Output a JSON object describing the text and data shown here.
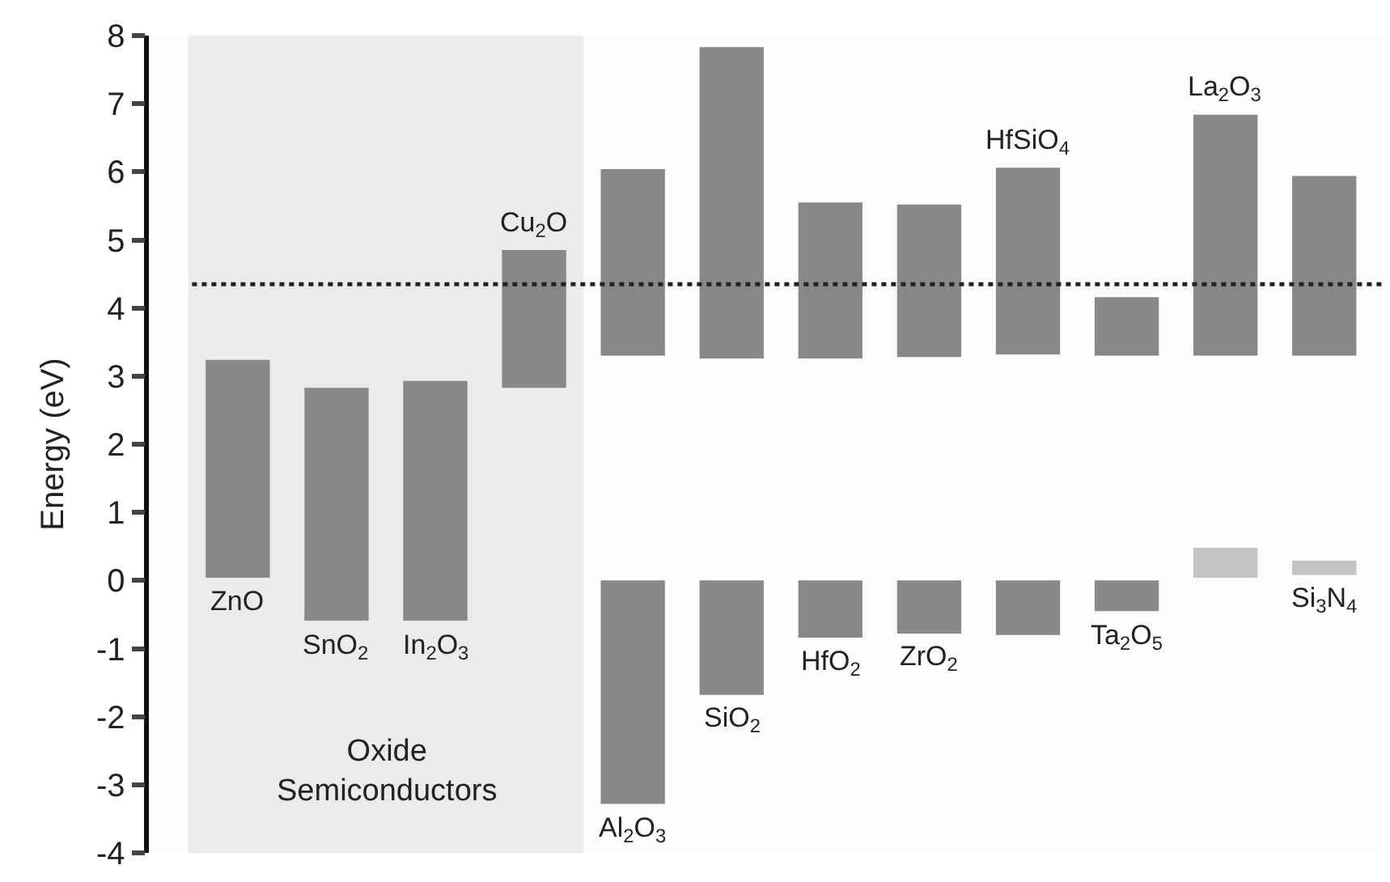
{
  "chart_data": {
    "type": "bar",
    "ylabel": "Energy (eV)",
    "categories": [
      null,
      null,
      null,
      null,
      null,
      null,
      null,
      null,
      null,
      null,
      null,
      null
    ],
    "series": [
      {
        "color": "#888888",
        "base": [
          0.04,
          -0.59,
          -0.59,
          2.83,
          3.3,
          3.26,
          3.26,
          3.28,
          3.32,
          3.3,
          3.3,
          3.3
        ],
        "values": [
          3.2,
          3.42,
          3.52,
          2.02,
          2.74,
          4.57,
          2.29,
          2.24,
          2.74,
          0.86,
          3.54,
          2.64
        ]
      },
      {
        "color": "#888888",
        "colors": [
          null,
          null,
          null,
          null,
          "#888888",
          "#888888",
          "#888888",
          "#888888",
          "#888888",
          "#888888",
          "#c4c4c4",
          "#c4c4c4"
        ],
        "base": [
          null,
          null,
          null,
          null,
          0,
          0,
          0,
          0,
          0,
          0,
          0.04,
          0.08
        ],
        "values": [
          null,
          null,
          null,
          null,
          -3.28,
          -1.68,
          -0.84,
          -0.78,
          -0.8,
          -0.45,
          0.44,
          0.21
        ]
      }
    ],
    "annotations": [
      {
        "text": "ZnO",
        "y": 0.04
      },
      {
        "text": "SnO$_{2}$",
        "y": -0.59
      },
      {
        "text": "In$_{2}$O$_{3}$",
        "y": -0.59
      },
      {
        "text": "Cu$_{2}$O",
        "y": 4.85
      },
      {
        "text": "Al$_{2}$O$_{3}$",
        "y": -3.28
      },
      {
        "text": "SiO$_{2}$",
        "y": -1.68
      },
      {
        "text": "HfO$_{2}$",
        "y": -0.84
      },
      {
        "text": "ZrO$_{2}$",
        "y": -0.78
      },
      {
        "text": "HfSiO$_{4}$",
        "y": 6.06
      },
      {
        "text": "Ta$_{2}$O$_{5}$",
        "y": -0.45
      },
      {
        "text": "La$_{2}$O$_{3}$",
        "y": 6.84
      },
      {
        "text": "Si$_{3}$N$_{4}$",
        "y": 0.08
      },
      "Oxide\nSemiconductors"
    ],
    "ref_lines": [
      {
        "axis": "y",
        "value": 4.35,
        "line_style": "dotted",
        "color": "#222222"
      }
    ],
    "ylim": [
      -4,
      8
    ],
    "yticks": [
      -4,
      -3,
      -2,
      -1,
      0,
      1,
      2,
      3,
      4,
      5,
      6,
      7,
      8
    ],
    "tick_labels": "y",
    "grid": false
  }
}
